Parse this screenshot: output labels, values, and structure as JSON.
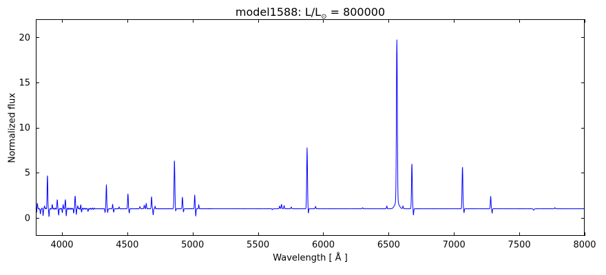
{
  "figure": {
    "title": {
      "prefix": "model1588: L/L",
      "subscript": "⊙",
      "suffix": " = 800000",
      "full": "model1588: L/L⊙ = 800000"
    },
    "xlabel": "Wavelength [ Å ]",
    "ylabel": "Normalized flux"
  },
  "chart_data": {
    "type": "line",
    "title": "model1588: L/L⊙ = 800000",
    "xlabel": "Wavelength [ Å ]",
    "ylabel": "Normalized flux",
    "xlim": [
      3800,
      8000
    ],
    "ylim": [
      -2,
      22
    ],
    "xticks": [
      4000,
      4500,
      5000,
      5500,
      6000,
      6500,
      7000,
      7500,
      8000
    ],
    "yticks": [
      0,
      5,
      10,
      15,
      20
    ],
    "grid": false,
    "legend": null,
    "line_color": "#0000ff",
    "axis_color": "#000000",
    "background_color": "#ffffff",
    "continuum_flux": 1.0,
    "emission_lines": [
      {
        "wavelength": 3812,
        "peak_flux": 1.6,
        "sigma": 2.5
      },
      {
        "wavelength": 3867,
        "peak_flux": 1.35,
        "sigma": 2
      },
      {
        "wavelength": 3889,
        "peak_flux": 4.7,
        "sigma": 2.5
      },
      {
        "wavelength": 3926,
        "peak_flux": 1.45,
        "sigma": 2
      },
      {
        "wavelength": 3964,
        "peak_flux": 1.95,
        "sigma": 2.5
      },
      {
        "wavelength": 4009,
        "peak_flux": 1.5,
        "sigma": 2
      },
      {
        "wavelength": 4026,
        "peak_flux": 2.0,
        "sigma": 2.5
      },
      {
        "wavelength": 4101,
        "peak_flux": 2.45,
        "sigma": 2.5
      },
      {
        "wavelength": 4121,
        "peak_flux": 1.35,
        "sigma": 2
      },
      {
        "wavelength": 4144,
        "peak_flux": 1.4,
        "sigma": 2
      },
      {
        "wavelength": 4340,
        "peak_flux": 3.65,
        "sigma": 2.5
      },
      {
        "wavelength": 4388,
        "peak_flux": 1.5,
        "sigma": 2
      },
      {
        "wavelength": 4437,
        "peak_flux": 1.2,
        "sigma": 2
      },
      {
        "wavelength": 4505,
        "peak_flux": 2.65,
        "sigma": 2.5
      },
      {
        "wavelength": 4597,
        "peak_flux": 1.25,
        "sigma": 2.5
      },
      {
        "wavelength": 4630,
        "peak_flux": 1.4,
        "sigma": 2.5
      },
      {
        "wavelength": 4645,
        "peak_flux": 1.6,
        "sigma": 2.5
      },
      {
        "wavelength": 4686,
        "peak_flux": 2.35,
        "sigma": 2.5
      },
      {
        "wavelength": 4713,
        "peak_flux": 1.3,
        "sigma": 2
      },
      {
        "wavelength": 4861,
        "peak_flux": 6.38,
        "sigma": 3
      },
      {
        "wavelength": 4922,
        "peak_flux": 2.3,
        "sigma": 2.5
      },
      {
        "wavelength": 5016,
        "peak_flux": 2.55,
        "sigma": 2.5
      },
      {
        "wavelength": 5047,
        "peak_flux": 1.45,
        "sigma": 2
      },
      {
        "wavelength": 5666,
        "peak_flux": 1.3,
        "sigma": 2.5
      },
      {
        "wavelength": 5680,
        "peak_flux": 1.5,
        "sigma": 2.5
      },
      {
        "wavelength": 5700,
        "peak_flux": 1.35,
        "sigma": 2.5
      },
      {
        "wavelength": 5755,
        "peak_flux": 1.2,
        "sigma": 2.5
      },
      {
        "wavelength": 5876,
        "peak_flux": 7.75,
        "sigma": 3
      },
      {
        "wavelength": 5941,
        "peak_flux": 1.25,
        "sigma": 2.5
      },
      {
        "wavelength": 6301,
        "peak_flux": 1.12,
        "sigma": 2.5
      },
      {
        "wavelength": 6486,
        "peak_flux": 1.3,
        "sigma": 2.5
      },
      {
        "wavelength": 6563,
        "peak_flux": 18.9,
        "sigma": 3.5
      },
      {
        "wavelength": 6563,
        "peak_flux": 1.8,
        "sigma": 15
      },
      {
        "wavelength": 6610,
        "peak_flux": 1.3,
        "sigma": 2.5
      },
      {
        "wavelength": 6678,
        "peak_flux": 6.0,
        "sigma": 3
      },
      {
        "wavelength": 7065,
        "peak_flux": 5.65,
        "sigma": 3
      },
      {
        "wavelength": 7281,
        "peak_flux": 2.4,
        "sigma": 2.5
      },
      {
        "wavelength": 7772,
        "peak_flux": 1.12,
        "sigma": 3
      }
    ],
    "absorption_dips": [
      {
        "wavelength": 3806,
        "min_flux": 0.55,
        "sigma": 2
      },
      {
        "wavelength": 3835,
        "min_flux": 0.35,
        "sigma": 2
      },
      {
        "wavelength": 3856,
        "min_flux": 0.3,
        "sigma": 2
      },
      {
        "wavelength": 3901,
        "min_flux": 0.1,
        "sigma": 2
      },
      {
        "wavelength": 3975,
        "min_flux": 0.3,
        "sigma": 2
      },
      {
        "wavelength": 4003,
        "min_flux": 0.55,
        "sigma": 2
      },
      {
        "wavelength": 4033,
        "min_flux": 0.2,
        "sigma": 2
      },
      {
        "wavelength": 4090,
        "min_flux": 0.5,
        "sigma": 2
      },
      {
        "wavelength": 4110,
        "min_flux": 0.4,
        "sigma": 2
      },
      {
        "wavelength": 4150,
        "min_flux": 0.65,
        "sigma": 2
      },
      {
        "wavelength": 4200,
        "min_flux": 0.7,
        "sigma": 2
      },
      {
        "wavelength": 4330,
        "min_flux": 0.6,
        "sigma": 2
      },
      {
        "wavelength": 4350,
        "min_flux": 0.55,
        "sigma": 2
      },
      {
        "wavelength": 4396,
        "min_flux": 0.6,
        "sigma": 2
      },
      {
        "wavelength": 4515,
        "min_flux": 0.5,
        "sigma": 2
      },
      {
        "wavelength": 4698,
        "min_flux": 0.3,
        "sigma": 2
      },
      {
        "wavelength": 4870,
        "min_flux": 0.7,
        "sigma": 2
      },
      {
        "wavelength": 4930,
        "min_flux": 0.6,
        "sigma": 2
      },
      {
        "wavelength": 5024,
        "min_flux": 0.2,
        "sigma": 2
      },
      {
        "wavelength": 5610,
        "min_flux": 0.88,
        "sigma": 2
      },
      {
        "wavelength": 5886,
        "min_flux": 0.5,
        "sigma": 2
      },
      {
        "wavelength": 6690,
        "min_flux": 0.3,
        "sigma": 2
      },
      {
        "wavelength": 7077,
        "min_flux": 0.55,
        "sigma": 2
      },
      {
        "wavelength": 7292,
        "min_flux": 0.5,
        "sigma": 2
      },
      {
        "wavelength": 7610,
        "min_flux": 0.85,
        "sigma": 4
      }
    ],
    "noise_regions": [
      {
        "from": 3800,
        "to": 4250,
        "amplitude": 0.055
      },
      {
        "from": 4250,
        "to": 5150,
        "amplitude": 0.018
      },
      {
        "from": 5150,
        "to": 8000,
        "amplitude": 0.008
      }
    ]
  }
}
